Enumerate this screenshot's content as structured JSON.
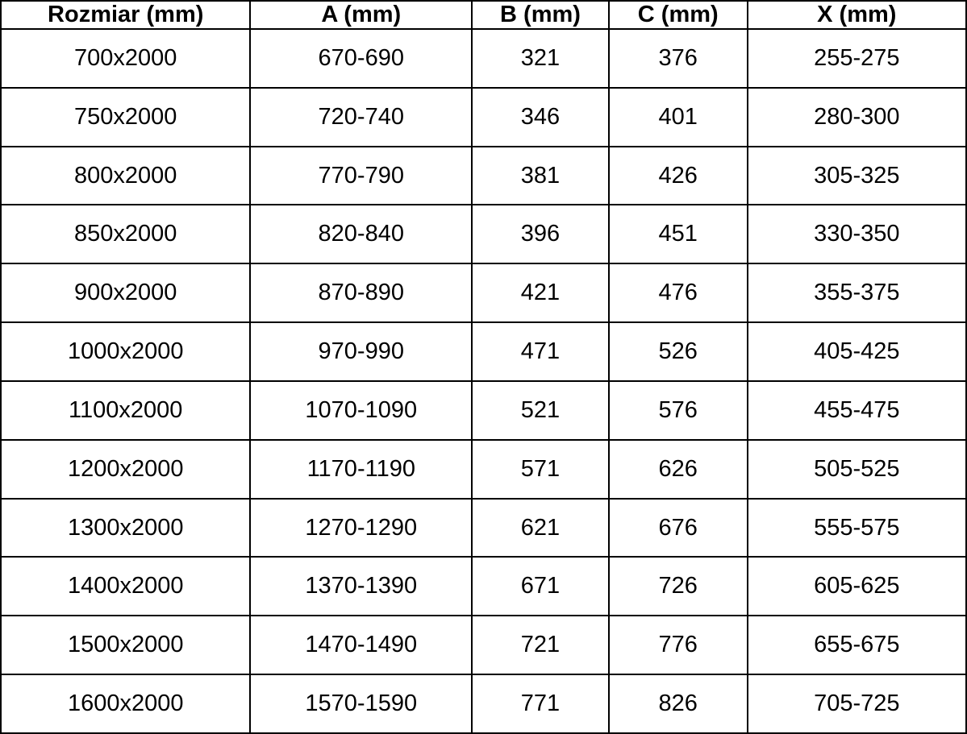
{
  "table": {
    "headers": [
      "Rozmiar (mm)",
      "A (mm)",
      "B (mm)",
      "C (mm)",
      "X (mm)"
    ],
    "rows": [
      [
        "700x2000",
        "670-690",
        "321",
        "376",
        "255-275"
      ],
      [
        "750x2000",
        "720-740",
        "346",
        "401",
        "280-300"
      ],
      [
        "800x2000",
        "770-790",
        "381",
        "426",
        "305-325"
      ],
      [
        "850x2000",
        "820-840",
        "396",
        "451",
        "330-350"
      ],
      [
        "900x2000",
        "870-890",
        "421",
        "476",
        "355-375"
      ],
      [
        "1000x2000",
        "970-990",
        "471",
        "526",
        "405-425"
      ],
      [
        "1100x2000",
        "1070-1090",
        "521",
        "576",
        "455-475"
      ],
      [
        "1200x2000",
        "1170-1190",
        "571",
        "626",
        "505-525"
      ],
      [
        "1300x2000",
        "1270-1290",
        "621",
        "676",
        "555-575"
      ],
      [
        "1400x2000",
        "1370-1390",
        "671",
        "726",
        "605-625"
      ],
      [
        "1500x2000",
        "1470-1490",
        "721",
        "776",
        "655-675"
      ],
      [
        "1600x2000",
        "1570-1590",
        "771",
        "826",
        "705-725"
      ]
    ],
    "colors": {
      "border": "#000000",
      "text": "#000000",
      "background": "#ffffff"
    }
  }
}
